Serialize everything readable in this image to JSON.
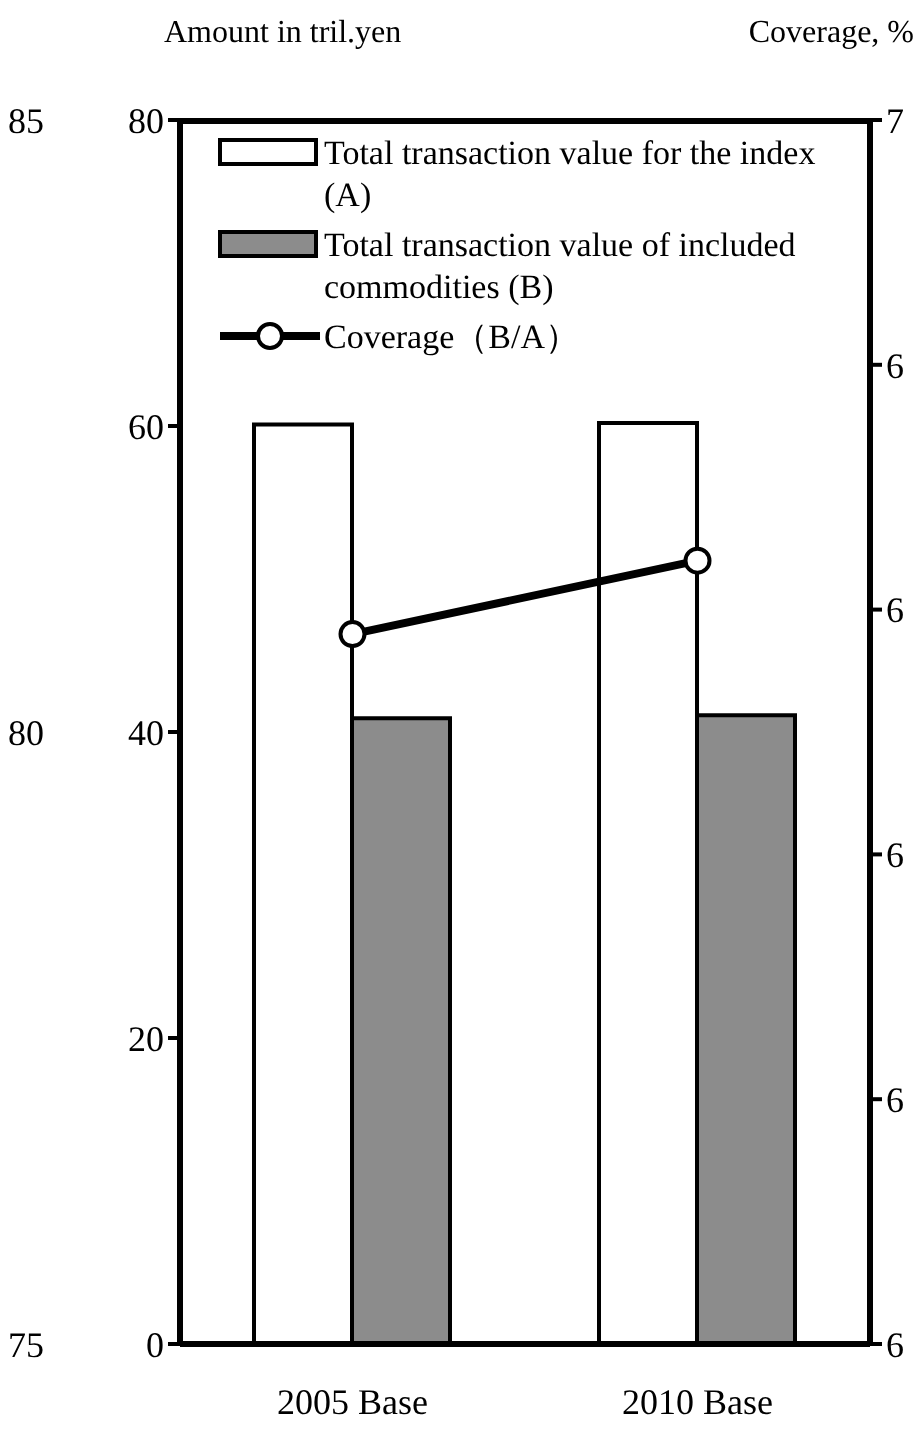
{
  "chart_data": {
    "type": "bar",
    "ylabel": "Amount in tril.yen",
    "categories": [
      "2005 Base",
      "2010 Base"
    ],
    "series": [
      {
        "name": "Total transaction value for the index (A)",
        "color": "#ffffff",
        "values": [
          60.1,
          60.2
        ]
      },
      {
        "name": "Total transaction value of included commodities (B)",
        "color": "#8c8c8c",
        "values": [
          40.9,
          41.1
        ]
      },
      {
        "name": "Coverage（B/A）",
        "type": "line",
        "axis": "y2",
        "color": "#000000",
        "values": [
          80.8,
          81.4
        ]
      }
    ],
    "ylim": [
      0,
      80
    ],
    "yticks": [
      0,
      20,
      40,
      60,
      80
    ],
    "y2lim": [
      75,
      85
    ],
    "y2ticks": [
      75,
      80,
      85
    ],
    "annotations": [
      "Coverage, %",
      "7",
      "6",
      "6",
      "6",
      "6",
      "6"
    ],
    "legend": "top left",
    "marker": "circle",
    "grid": false
  }
}
